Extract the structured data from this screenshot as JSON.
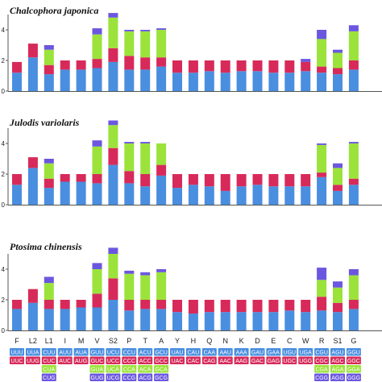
{
  "chart_data": [
    {
      "type": "bar",
      "stacked": true,
      "title": "Chalcophora japonica",
      "ytick_labels": [
        "0",
        "2",
        "4"
      ],
      "ylim": [
        0,
        5
      ],
      "grid": false,
      "categories": [
        "F",
        "L2",
        "L1",
        "I",
        "M",
        "V",
        "S2",
        "P",
        "T",
        "A",
        "Y",
        "H",
        "Q",
        "N",
        "K",
        "D",
        "E",
        "C",
        "W",
        "R",
        "S1",
        "G"
      ],
      "series": [
        {
          "values": [
            1.2,
            2.2,
            1.1,
            1.4,
            1.4,
            1.5,
            1.9,
            1.4,
            1.4,
            1.6,
            1.2,
            1.2,
            1.3,
            1.2,
            1.3,
            1.3,
            1.2,
            1.2,
            1.3,
            1.2,
            1.1,
            1.4
          ]
        },
        {
          "values": [
            0.7,
            0.9,
            0.6,
            0.6,
            0.6,
            0.6,
            0.9,
            0.9,
            0.8,
            0.6,
            0.8,
            0.8,
            0.7,
            0.8,
            0.7,
            0.7,
            0.8,
            0.8,
            0.6,
            0.4,
            0.4,
            0.6
          ]
        },
        {
          "values": [
            0,
            0,
            1.0,
            0,
            0,
            1.6,
            2.0,
            1.6,
            1.7,
            1.8,
            0,
            0,
            0,
            0,
            0,
            0,
            0,
            0,
            0,
            1.8,
            1.0,
            1.9
          ]
        },
        {
          "values": [
            0,
            0,
            0.3,
            0,
            0,
            0.4,
            0.3,
            0.1,
            0.1,
            0.1,
            0,
            0,
            0,
            0,
            0,
            0,
            0,
            0,
            0.2,
            0.6,
            0.2,
            0.4
          ]
        }
      ]
    },
    {
      "type": "bar",
      "stacked": true,
      "title": "Julodis variolaris",
      "ytick_labels": [
        "0",
        "2",
        "4"
      ],
      "ylim": [
        0,
        5
      ],
      "grid": false,
      "categories": [
        "F",
        "L2",
        "L1",
        "I",
        "M",
        "V",
        "S2",
        "P",
        "T",
        "A",
        "Y",
        "H",
        "Q",
        "N",
        "K",
        "D",
        "E",
        "C",
        "W",
        "R",
        "S1",
        "G"
      ],
      "series": [
        {
          "values": [
            1.3,
            2.4,
            1.1,
            1.5,
            1.5,
            1.4,
            2.6,
            1.4,
            1.2,
            1.9,
            1.1,
            1.3,
            1.2,
            0.9,
            1.2,
            1.3,
            1.2,
            1.2,
            1.2,
            1.8,
            0.9,
            1.3
          ]
        },
        {
          "values": [
            0.7,
            0.7,
            0.6,
            0.5,
            0.5,
            0.6,
            1.1,
            0.8,
            0.8,
            0.7,
            0.9,
            0.7,
            0.8,
            1.1,
            0.8,
            0.7,
            0.8,
            0.8,
            0.8,
            0.3,
            0.4,
            0.4
          ]
        },
        {
          "values": [
            0,
            0,
            1.0,
            0,
            0,
            1.8,
            1.5,
            1.8,
            2.0,
            1.4,
            0,
            0,
            0,
            0,
            0,
            0,
            0,
            0,
            0,
            1.8,
            1.1,
            2.3
          ]
        },
        {
          "values": [
            0,
            0,
            0.3,
            0,
            0,
            0.4,
            0.3,
            0.1,
            0.1,
            0,
            0,
            0,
            0,
            0,
            0,
            0,
            0,
            0,
            0,
            0.1,
            0.3,
            0.1
          ]
        }
      ]
    },
    {
      "type": "bar",
      "stacked": true,
      "title": "Ptosima chinensis",
      "ytick_labels": [
        "0",
        "2",
        "4"
      ],
      "ylim": [
        0,
        5
      ],
      "grid": false,
      "categories": [
        "F",
        "L2",
        "L1",
        "I",
        "M",
        "V",
        "S2",
        "P",
        "T",
        "A",
        "Y",
        "H",
        "Q",
        "N",
        "K",
        "D",
        "E",
        "C",
        "W",
        "R",
        "S1",
        "G"
      ],
      "series": [
        {
          "values": [
            1.4,
            1.8,
            1.4,
            1.4,
            1.5,
            1.5,
            2.0,
            1.3,
            1.4,
            1.4,
            1.2,
            1.1,
            1.2,
            1.2,
            1.2,
            1.2,
            1.2,
            1.3,
            1.2,
            1.3,
            1.2,
            1.4
          ]
        },
        {
          "values": [
            0.6,
            0.9,
            0.6,
            0.6,
            0.5,
            0.9,
            1.4,
            0.7,
            0.6,
            0.6,
            0.8,
            0.9,
            0.8,
            0.8,
            0.8,
            0.8,
            0.8,
            0.7,
            0.8,
            0.9,
            0.6,
            0.6
          ]
        },
        {
          "values": [
            0,
            0,
            1.1,
            0,
            0,
            1.6,
            1.6,
            1.7,
            1.6,
            1.8,
            0,
            0,
            0,
            0,
            0,
            0,
            0,
            0,
            0,
            1.1,
            1.0,
            1.6
          ]
        },
        {
          "values": [
            0,
            0,
            0.4,
            0,
            0,
            0.4,
            0.4,
            0.2,
            0.2,
            0.2,
            0,
            0,
            0,
            0,
            0,
            0,
            0,
            0,
            0,
            0.8,
            0.4,
            0.4
          ]
        }
      ]
    }
  ],
  "series_colors": [
    "#4a8ee0",
    "#d72a5a",
    "#9be33a",
    "#6b57df"
  ],
  "codon_table": {
    "row_colors": [
      "#4a8ee0",
      "#d72a5a",
      "#9be33a",
      "#6b57df"
    ],
    "columns": [
      [
        "UUU",
        "UUC"
      ],
      [
        "UUA",
        "UUG"
      ],
      [
        "CUU",
        "CUC",
        "CUA",
        "CUG"
      ],
      [
        "AUU",
        "AUC"
      ],
      [
        "AUA",
        "AUG"
      ],
      [
        "GUU",
        "GUC",
        "GUA",
        "GUG"
      ],
      [
        "UCU",
        "UCC",
        "UCA",
        "UCG"
      ],
      [
        "CCU",
        "CCC",
        "CCA",
        "CCG"
      ],
      [
        "ACU",
        "ACC",
        "ACA",
        "ACG"
      ],
      [
        "GCU",
        "GCC",
        "GCA",
        "GCG"
      ],
      [
        "UAU",
        "UAC"
      ],
      [
        "CAU",
        "CAC"
      ],
      [
        "CAA",
        "CAG"
      ],
      [
        "AAU",
        "AAC"
      ],
      [
        "AAA",
        "AAG"
      ],
      [
        "GAU",
        "GAC"
      ],
      [
        "GAA",
        "GAG"
      ],
      [
        "UGU",
        "UGC"
      ],
      [
        "UGA",
        "UGG"
      ],
      [
        "CGU",
        "CGC",
        "CGA",
        "CGG"
      ],
      [
        "AGU",
        "AGC",
        "AGA",
        "AGG"
      ],
      [
        "GGU",
        "GGC",
        "GGA",
        "GGG"
      ]
    ]
  }
}
